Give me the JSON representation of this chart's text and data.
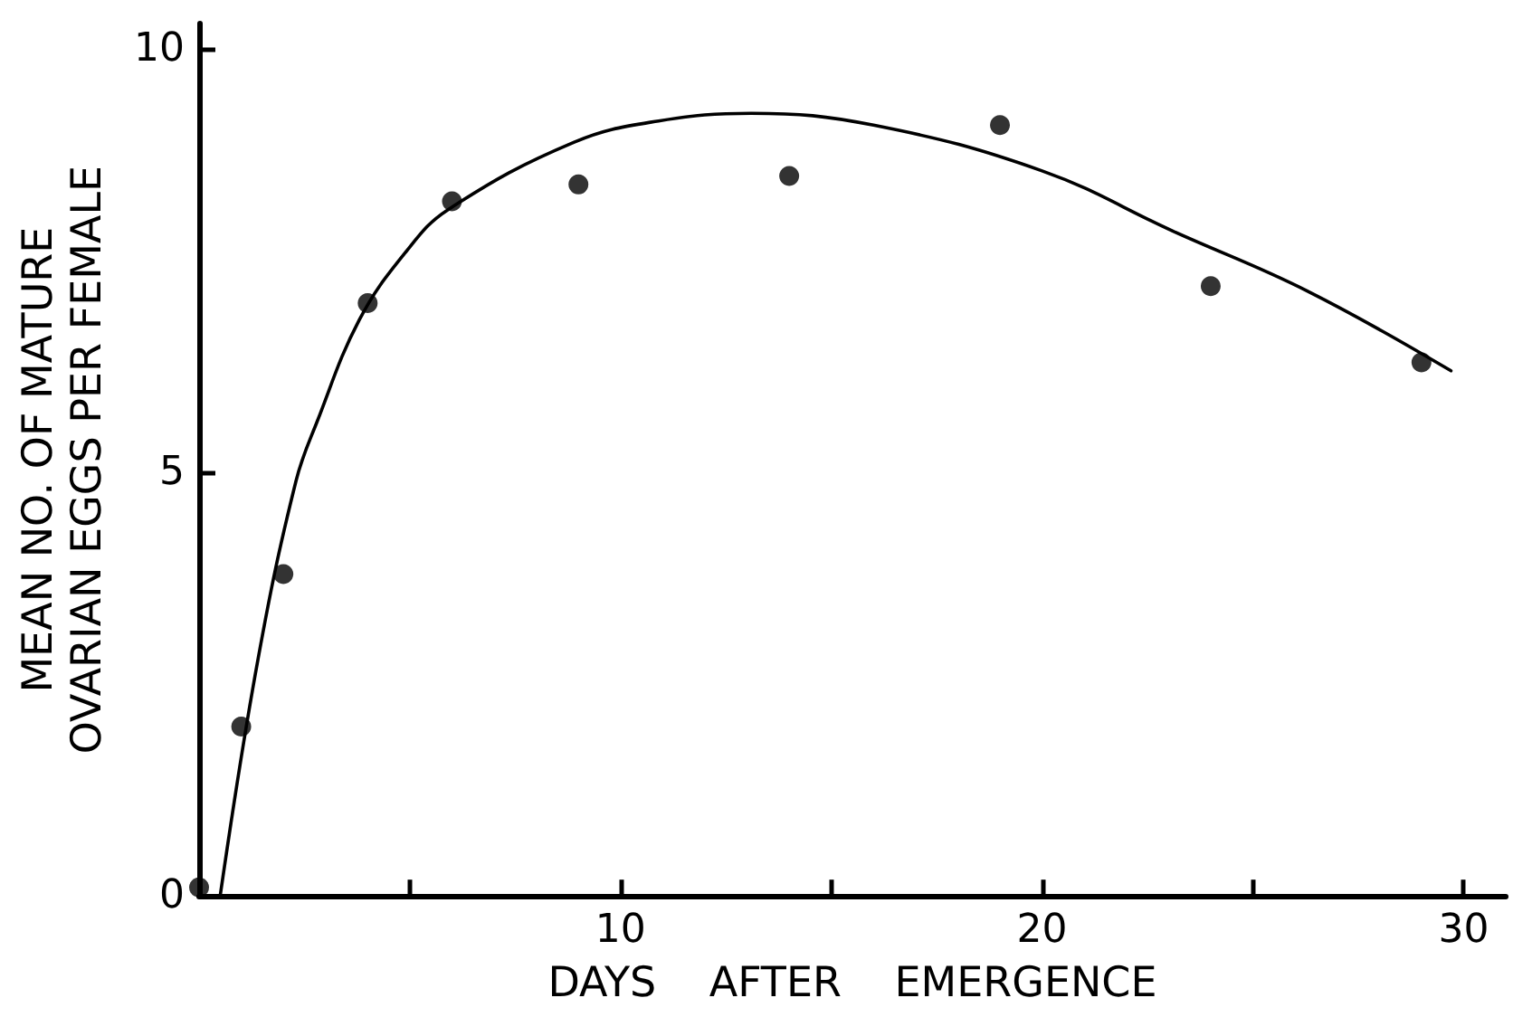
{
  "chart_data": {
    "type": "scatter",
    "xlabel": "DAYS    AFTER    EMERGENCE",
    "ylabel": "MEAN NO. OF MATURE\nOVARIAN EGGS PER FEMALE",
    "xlim": [
      0,
      31
    ],
    "ylim": [
      0,
      10.3
    ],
    "xticks": [
      {
        "value": 5,
        "label": null
      },
      10,
      {
        "value": 15,
        "label": null
      },
      20,
      {
        "value": 25,
        "label": null
      },
      30
    ],
    "yticks": [
      0,
      5,
      10
    ],
    "grid": false,
    "series": [
      {
        "marker": "circle",
        "color": "#000000",
        "x": [
          0,
          1,
          2,
          4,
          6,
          9,
          14,
          19,
          24,
          29
        ],
        "values": [
          0.1,
          2.0,
          3.8,
          7.0,
          8.2,
          8.4,
          8.5,
          9.1,
          7.2,
          6.3
        ]
      },
      {
        "type": "line",
        "marker": "none",
        "line_style": "solid",
        "color": "#000000",
        "x": [
          0.5,
          1.4,
          2.3,
          2.8,
          3.8,
          4.9,
          5.9,
          8.9,
          10.9,
          13.1,
          16,
          20,
          23.1,
          26.3,
          29.7
        ],
        "values": [
          0,
          2.8,
          4.9,
          5.6,
          6.8,
          7.6,
          8.1,
          8.9,
          9.15,
          9.24,
          9.1,
          8.56,
          7.85,
          7.14,
          6.2
        ]
      }
    ]
  }
}
